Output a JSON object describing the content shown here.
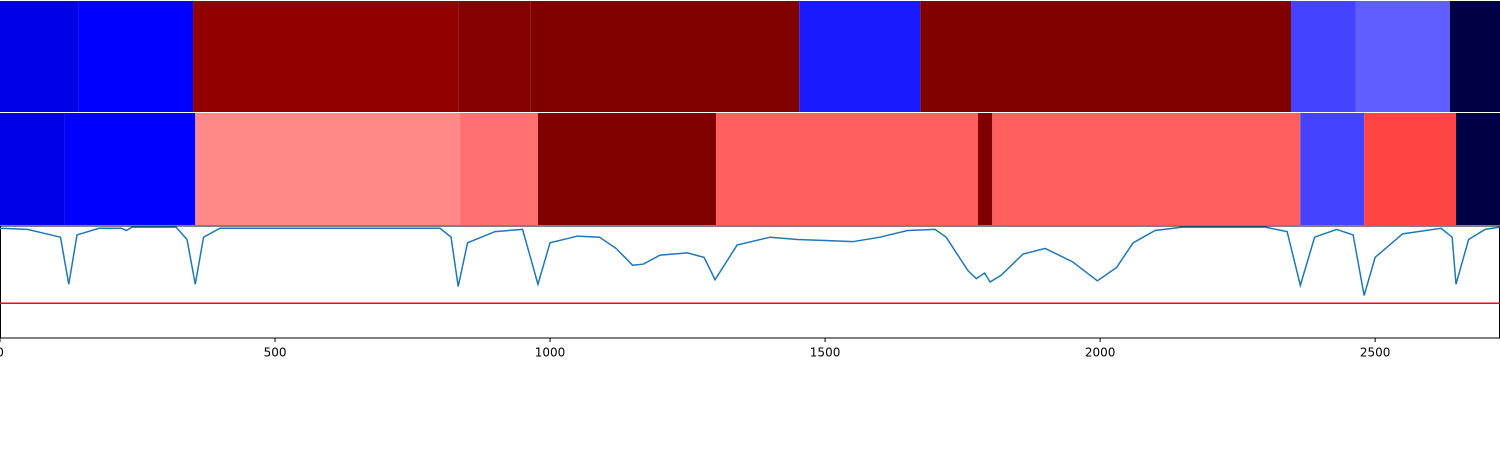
{
  "chart_data": [
    {
      "type": "segments",
      "bins": [
        0,
        142,
        351,
        833,
        964,
        1453,
        1673,
        2347,
        2465,
        2636,
        2727
      ],
      "colors": [
        "#0000e8",
        "#0000ff",
        "#920000",
        "#850000",
        "#800000",
        "#1a1aff",
        "#800000",
        "#4444ff",
        "#5f5fff",
        "#000045"
      ],
      "xlim": [
        0,
        2727
      ]
    },
    {
      "type": "segments",
      "bins": [
        0,
        118,
        355,
        836,
        978,
        1302,
        1778,
        1804,
        2364,
        2480,
        2647,
        2727
      ],
      "colors": [
        "#0000e8",
        "#0000ff",
        "#ff8888",
        "#ff7070",
        "#800000",
        "#ff5f5f",
        "#800000",
        "#ff5f5f",
        "#4444ff",
        "#ff4444",
        "#000045"
      ],
      "xlim": [
        0,
        2727
      ]
    },
    {
      "type": "line",
      "x": [
        0,
        50,
        110,
        125,
        140,
        180,
        220,
        230,
        240,
        320,
        340,
        355,
        370,
        400,
        800,
        820,
        833,
        850,
        900,
        950,
        978,
        1000,
        1050,
        1090,
        1120,
        1150,
        1170,
        1200,
        1250,
        1280,
        1300,
        1340,
        1400,
        1450,
        1500,
        1550,
        1600,
        1650,
        1700,
        1720,
        1760,
        1775,
        1790,
        1800,
        1820,
        1860,
        1900,
        1950,
        1995,
        2030,
        2060,
        2100,
        2150,
        2300,
        2340,
        2364,
        2390,
        2430,
        2460,
        2480,
        2500,
        2550,
        2620,
        2640,
        2647,
        2670,
        2700,
        2727
      ],
      "series": [
        {
          "color": "#1f77b4",
          "values": [
            0.98,
            0.97,
            0.9,
            0.48,
            0.92,
            0.98,
            0.98,
            0.96,
            0.99,
            0.99,
            0.88,
            0.48,
            0.9,
            0.98,
            0.98,
            0.9,
            0.46,
            0.85,
            0.95,
            0.97,
            0.48,
            0.85,
            0.91,
            0.9,
            0.8,
            0.65,
            0.66,
            0.74,
            0.76,
            0.72,
            0.52,
            0.83,
            0.9,
            0.88,
            0.87,
            0.86,
            0.9,
            0.96,
            0.97,
            0.9,
            0.6,
            0.53,
            0.58,
            0.5,
            0.56,
            0.75,
            0.8,
            0.68,
            0.51,
            0.63,
            0.85,
            0.96,
            0.99,
            0.99,
            0.95,
            0.47,
            0.9,
            0.97,
            0.92,
            0.38,
            0.72,
            0.93,
            0.98,
            0.9,
            0.48,
            0.88,
            0.97,
            0.99
          ]
        }
      ],
      "threshold": 0.31,
      "threshold_color": "#ff0000",
      "xlim": [
        0,
        2727
      ],
      "ylim": [
        0,
        1
      ],
      "xticks": [
        0,
        500,
        1000,
        1500,
        2000,
        2500
      ]
    }
  ]
}
